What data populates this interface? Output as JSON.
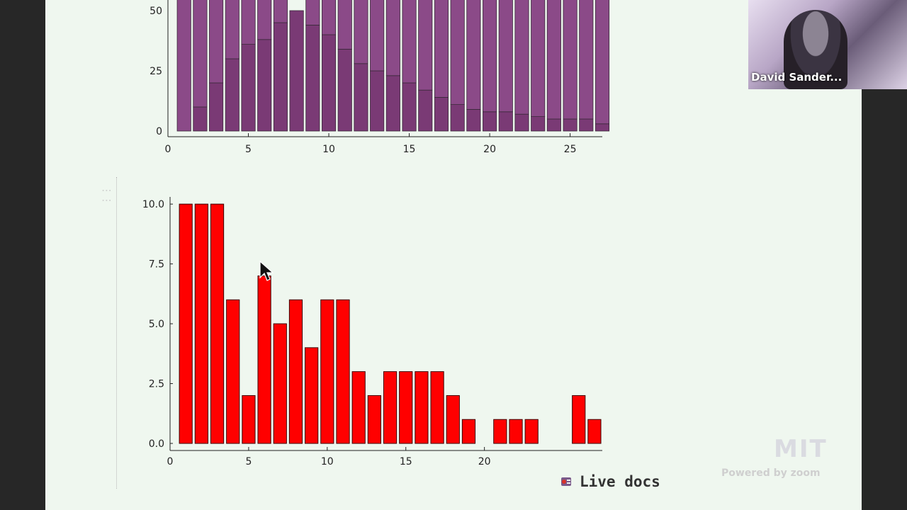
{
  "chart_data": [
    {
      "type": "bar",
      "stacked": true,
      "x": [
        1,
        2,
        3,
        4,
        5,
        6,
        7,
        8,
        9,
        10,
        11,
        12,
        13,
        14,
        15,
        16,
        17,
        18,
        19,
        20,
        21,
        22,
        23,
        24,
        25,
        26,
        27
      ],
      "series": [
        {
          "color": "#7a3a75",
          "values": [
            0,
            10,
            20,
            30,
            36,
            38,
            45,
            50,
            44,
            40,
            34,
            28,
            25,
            23,
            20,
            17,
            14,
            11,
            9,
            8,
            8,
            7,
            6,
            5,
            5,
            5,
            3
          ]
        },
        {
          "color": "#8b4a88",
          "values": [
            60,
            50,
            40,
            30,
            24,
            22,
            15,
            0,
            16,
            20,
            26,
            32,
            35,
            37,
            40,
            43,
            46,
            49,
            51,
            52,
            52,
            53,
            54,
            55,
            55,
            55,
            57
          ]
        }
      ],
      "xticks": [
        "0",
        "5",
        "10",
        "15",
        "20",
        "25"
      ],
      "yticks": [
        "0",
        "25",
        "50"
      ],
      "xlim": [
        0,
        27
      ],
      "ylim": [
        0,
        60
      ]
    },
    {
      "type": "bar",
      "color": "#ff0000",
      "x": [
        1,
        2,
        3,
        4,
        5,
        6,
        7,
        8,
        9,
        10,
        11,
        12,
        13,
        14,
        15,
        16,
        17,
        18,
        19,
        20,
        21,
        22,
        23,
        24,
        25,
        26,
        27
      ],
      "values": [
        10,
        10,
        10,
        6,
        2,
        7,
        5,
        6,
        4,
        6,
        6,
        3,
        2,
        3,
        3,
        3,
        3,
        2,
        1,
        0,
        1,
        1,
        1,
        0,
        0,
        2,
        1
      ],
      "xticks": [
        "0",
        "5",
        "10",
        "15",
        "20"
      ],
      "yticks": [
        "0.0",
        "2.5",
        "5.0",
        "7.5",
        "10.0"
      ],
      "xlim": [
        0,
        27.5
      ],
      "ylim": [
        0,
        10.3
      ]
    }
  ],
  "live_docs": {
    "label": "Live docs",
    "icon": "live-docs-icon"
  },
  "video": {
    "participant_name": "David Sander..."
  },
  "watermark": {
    "logo": "MIT",
    "text": "Powered by zoom"
  }
}
